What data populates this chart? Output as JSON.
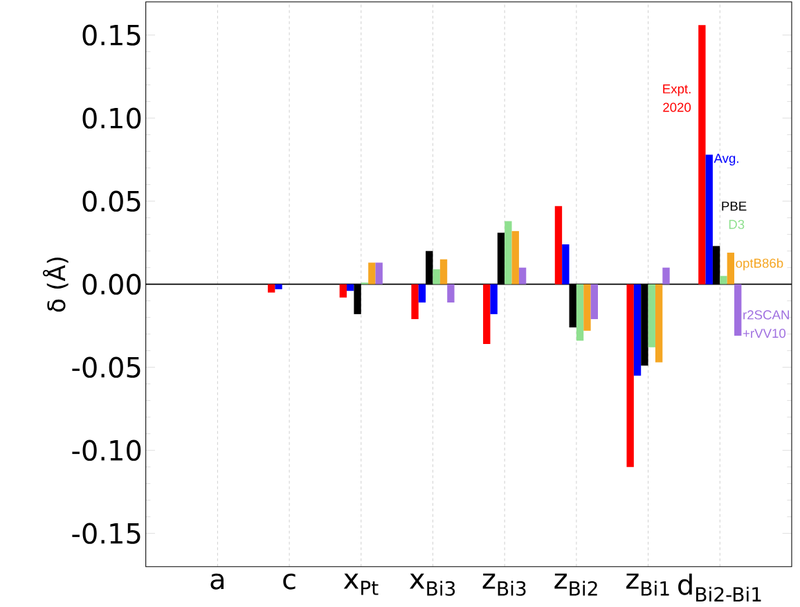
{
  "chart_data": {
    "type": "bar",
    "ylabel": "δ (Å)",
    "categories": [
      "a",
      "c",
      "x$_{Pt}$",
      "x$_{Bi3}$",
      "z$_{Bi3}$",
      "z$_{Bi2}$",
      "z$_{Bi1}$",
      "d$_{Bi2-Bi1}$"
    ],
    "series": [
      {
        "name": "Expt. 2020",
        "color": "#ff0000",
        "values": [
          0,
          -0.005,
          -0.008,
          -0.021,
          -0.036,
          0.047,
          -0.11,
          0.156
        ]
      },
      {
        "name": "Avg.",
        "color": "#0000ff",
        "values": [
          0,
          -0.003,
          -0.004,
          -0.011,
          -0.018,
          0.024,
          -0.055,
          0.078
        ]
      },
      {
        "name": "PBE",
        "color": "#000000",
        "values": [
          null,
          null,
          -0.018,
          0.02,
          0.031,
          -0.026,
          -0.049,
          0.023
        ]
      },
      {
        "name": "D3",
        "color": "#8fe08f",
        "values": [
          null,
          null,
          0.001,
          0.009,
          0.038,
          -0.034,
          -0.038,
          0.005
        ]
      },
      {
        "name": "optB86b",
        "color": "#f5a623",
        "values": [
          null,
          null,
          0.013,
          0.015,
          0.032,
          -0.028,
          -0.047,
          0.019
        ]
      },
      {
        "name": "r2SCAN +rVV10",
        "color": "#a070e0",
        "values": [
          null,
          null,
          0.013,
          -0.011,
          0.01,
          -0.021,
          0.01,
          -0.031
        ]
      }
    ],
    "ylim": [
      -0.17,
      0.17
    ],
    "yticks": [
      {
        "value": -0.15,
        "label": "-0.15"
      },
      {
        "value": -0.1,
        "label": "-0.10"
      },
      {
        "value": -0.05,
        "label": "-0.05"
      },
      {
        "value": 0,
        "label": "0.00"
      },
      {
        "value": 0.05,
        "label": "0.05"
      },
      {
        "value": 0.1,
        "label": "0.10"
      },
      {
        "value": 0.15,
        "label": "0.15"
      }
    ],
    "ref_lines": [
      {
        "axis": "y",
        "value": 0
      }
    ],
    "grid": "x",
    "legend": "right"
  }
}
